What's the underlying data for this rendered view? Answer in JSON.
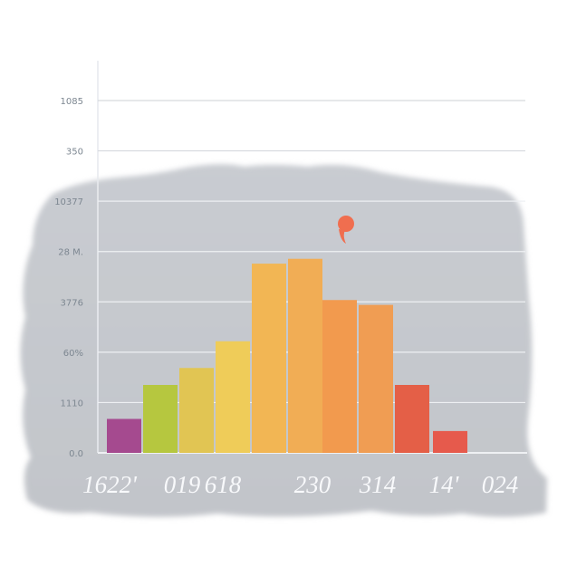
{
  "chart_data": {
    "type": "bar",
    "y_tick_labels": [
      "1085",
      "350",
      "10377",
      "28 M.",
      "3776",
      "60%",
      "1110",
      "0.0"
    ],
    "x_tick_labels": [
      "1622'",
      "019",
      "618",
      "230",
      "314",
      "14'",
      "024"
    ],
    "values": [
      70,
      140,
      175,
      230,
      390,
      400,
      315,
      305,
      140,
      45
    ],
    "ylim": [
      0,
      560
    ],
    "grid": true,
    "colors": [
      "#a54a8f",
      "#b6c73f",
      "#e1c553",
      "#efcc59",
      "#f2b654",
      "#f1ad55",
      "#f29a4e",
      "#f09d53",
      "#e45f47",
      "#e65a4c"
    ],
    "marker_color": "#f06e4f"
  }
}
